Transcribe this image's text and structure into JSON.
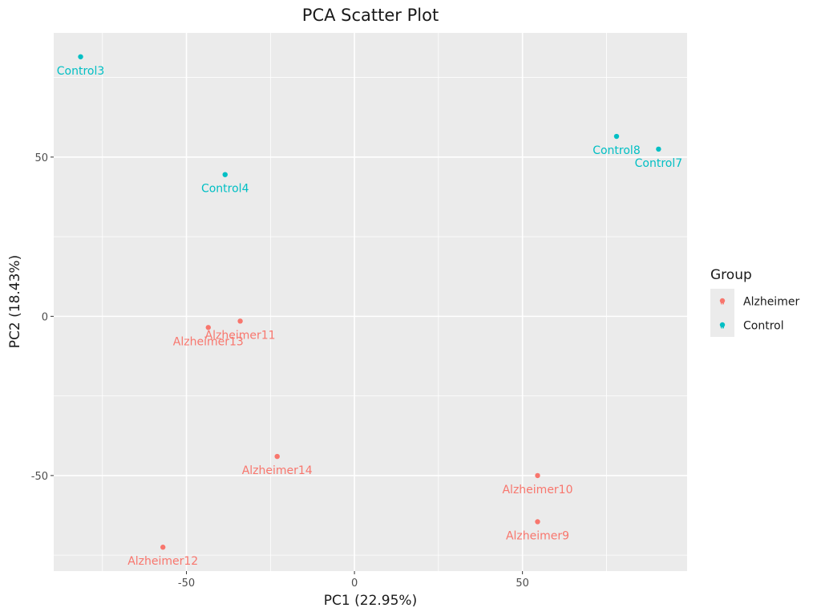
{
  "chart_data": {
    "type": "scatter",
    "title": "PCA Scatter Plot",
    "xlabel": "PC1 (22.95%)",
    "ylabel": "PC2 (18.43%)",
    "xlim": [
      -89.5,
      99
    ],
    "ylim": [
      -80,
      89
    ],
    "xticks": [
      -50,
      0,
      50
    ],
    "xtick_labels": [
      "-50",
      "0",
      "50"
    ],
    "yticks": [
      -50,
      0,
      50
    ],
    "ytick_labels": [
      "-50",
      "0",
      "50"
    ],
    "grid": true,
    "legend": {
      "title": "Group",
      "position": "right",
      "entries": [
        {
          "label": "Alzheimer",
          "color": "#F8766D"
        },
        {
          "label": "Control",
          "color": "#00BFC4"
        }
      ]
    },
    "series": [
      {
        "name": "Alzheimer",
        "color": "#F8766D",
        "points": [
          {
            "label": "Alzheimer11",
            "x": -34,
            "y": -1.5
          },
          {
            "label": "Alzheimer13",
            "x": -43.5,
            "y": -3.5
          },
          {
            "label": "Alzheimer14",
            "x": -23,
            "y": -44
          },
          {
            "label": "Alzheimer12",
            "x": -57,
            "y": -72.5
          },
          {
            "label": "Alzheimer10",
            "x": 54.5,
            "y": -50
          },
          {
            "label": "Alzheimer9",
            "x": 54.5,
            "y": -64.5
          }
        ]
      },
      {
        "name": "Control",
        "color": "#00BFC4",
        "points": [
          {
            "label": "Control3",
            "x": -81.5,
            "y": 81.5
          },
          {
            "label": "Control4",
            "x": -38.5,
            "y": 44.5
          },
          {
            "label": "Control8",
            "x": 78,
            "y": 56.5
          },
          {
            "label": "Control7",
            "x": 90.5,
            "y": 52.5
          }
        ]
      }
    ]
  }
}
